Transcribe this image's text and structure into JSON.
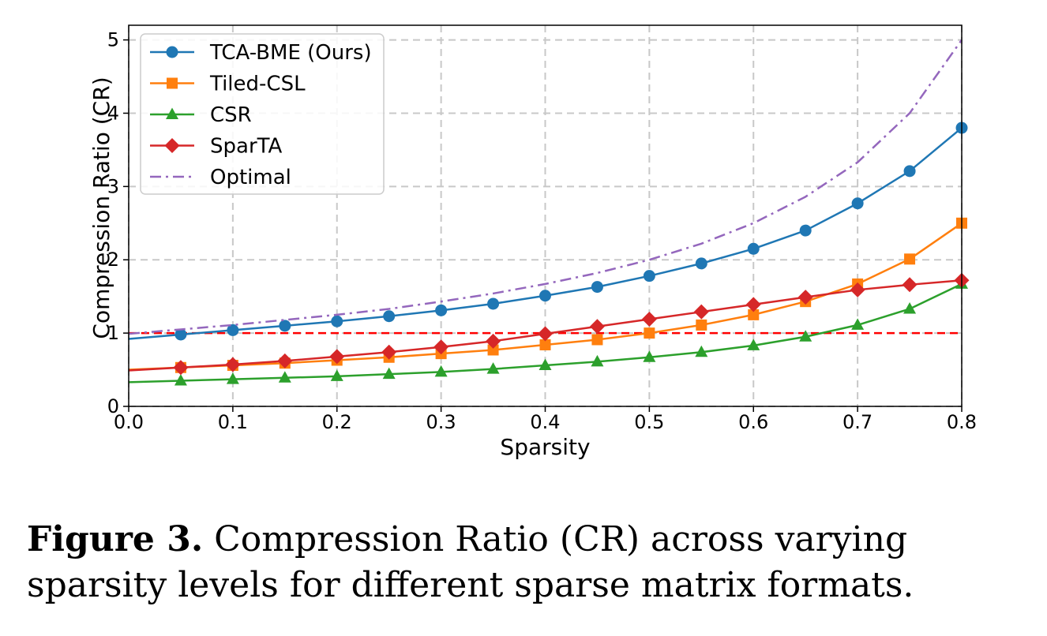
{
  "caption": {
    "label": "Figure 3.",
    "text": "Compression Ratio (CR) across varying sparsity levels for different sparse matrix formats."
  },
  "chart_data": {
    "type": "line",
    "xlabel": "Sparsity",
    "ylabel": "Compression Ratio (CR)",
    "xlim": [
      0.0,
      0.8
    ],
    "ylim": [
      0,
      5.2
    ],
    "xticks": [
      "0.0",
      "0.1",
      "0.2",
      "0.3",
      "0.4",
      "0.5",
      "0.6",
      "0.7",
      "0.8"
    ],
    "yticks": [
      "0",
      "1",
      "2",
      "3",
      "4",
      "5"
    ],
    "grid": true,
    "legend_position": "top-left",
    "x": [
      0.05,
      0.1,
      0.15,
      0.2,
      0.25,
      0.3,
      0.35,
      0.4,
      0.45,
      0.5,
      0.55,
      0.6,
      0.65,
      0.7,
      0.75,
      0.8
    ],
    "series": [
      {
        "name": "TCA-BME (Ours)",
        "color": "#1f77b4",
        "marker": "circle",
        "values": [
          0.98,
          1.04,
          1.1,
          1.16,
          1.23,
          1.31,
          1.4,
          1.51,
          1.63,
          1.78,
          1.95,
          2.15,
          2.4,
          2.77,
          3.21,
          3.8
        ]
      },
      {
        "name": "Tiled-CSL",
        "color": "#ff7f0e",
        "marker": "square",
        "values": [
          0.53,
          0.56,
          0.59,
          0.63,
          0.67,
          0.72,
          0.77,
          0.84,
          0.91,
          1.0,
          1.11,
          1.25,
          1.43,
          1.67,
          2.01,
          2.5
        ]
      },
      {
        "name": "CSR",
        "color": "#2ca02c",
        "marker": "triangle",
        "values": [
          0.35,
          0.37,
          0.39,
          0.41,
          0.44,
          0.47,
          0.51,
          0.56,
          0.61,
          0.67,
          0.74,
          0.83,
          0.95,
          1.11,
          1.33,
          1.67
        ]
      },
      {
        "name": "SparTA",
        "color": "#d62728",
        "marker": "diamond",
        "values": [
          0.53,
          0.57,
          0.62,
          0.68,
          0.74,
          0.81,
          0.89,
          0.99,
          1.09,
          1.19,
          1.29,
          1.39,
          1.49,
          1.59,
          1.66,
          1.72
        ]
      },
      {
        "name": "Optimal",
        "color": "#9467bd",
        "marker": "none",
        "dash": "dashdot",
        "values": [
          1.05,
          1.11,
          1.18,
          1.25,
          1.33,
          1.43,
          1.54,
          1.67,
          1.82,
          2.0,
          2.22,
          2.5,
          2.86,
          3.33,
          4.0,
          5.0
        ]
      }
    ],
    "reference_line": {
      "y": 1.0,
      "color": "#ff0000"
    }
  }
}
